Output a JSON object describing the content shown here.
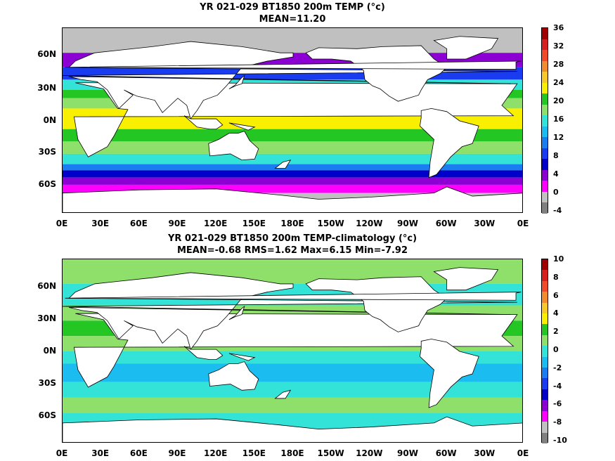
{
  "panel1": {
    "title_line1": "YR 021-029 BT1850 200m TEMP (°c)",
    "title_line2": "MEAN=11.20",
    "y_ticks": [
      "60N",
      "30N",
      "0N",
      "30S",
      "60S"
    ],
    "x_ticks": [
      "0E",
      "30E",
      "60E",
      "90E",
      "120E",
      "150E",
      "180E",
      "150W",
      "120W",
      "90W",
      "60W",
      "30W",
      "0E"
    ],
    "colorbar_labels": [
      "36",
      "32",
      "28",
      "24",
      "20",
      "16",
      "12",
      "8",
      "4",
      "0",
      "-4"
    ],
    "colorbar_colors": [
      "#a00000",
      "#d61f1f",
      "#f04a2a",
      "#f28b2d",
      "#f6c82a",
      "#f8f000",
      "#23c623",
      "#8ee06a",
      "#34e3d8",
      "#1bbcf0",
      "#1a7df0",
      "#1a3cf0",
      "#0000c8",
      "#8d00d3",
      "#ff00ff",
      "#c0c0c0",
      "#808080"
    ]
  },
  "panel2": {
    "title_line1": "YR 021-029 BT1850 200m TEMP-climatology (°c)",
    "title_line2": "MEAN=-0.68   RMS=1.62   Max=6.15   Min=-7.92",
    "y_ticks": [
      "60N",
      "30N",
      "0N",
      "30S",
      "60S"
    ],
    "x_ticks": [
      "0E",
      "30E",
      "60E",
      "90E",
      "120E",
      "150E",
      "180E",
      "150W",
      "120W",
      "90W",
      "60W",
      "30W",
      "0E"
    ],
    "colorbar_labels": [
      "10",
      "8",
      "6",
      "4",
      "2",
      "0",
      "-2",
      "-4",
      "-6",
      "-8",
      "-10"
    ],
    "colorbar_colors": [
      "#a00000",
      "#d61f1f",
      "#f04a2a",
      "#f28b2d",
      "#f6c82a",
      "#f8f000",
      "#23c623",
      "#8ee06a",
      "#34e3d8",
      "#1bbcf0",
      "#1a7df0",
      "#1a3cf0",
      "#0000c8",
      "#8d00d3",
      "#ff00ff",
      "#c0c0c0",
      "#808080"
    ]
  }
}
